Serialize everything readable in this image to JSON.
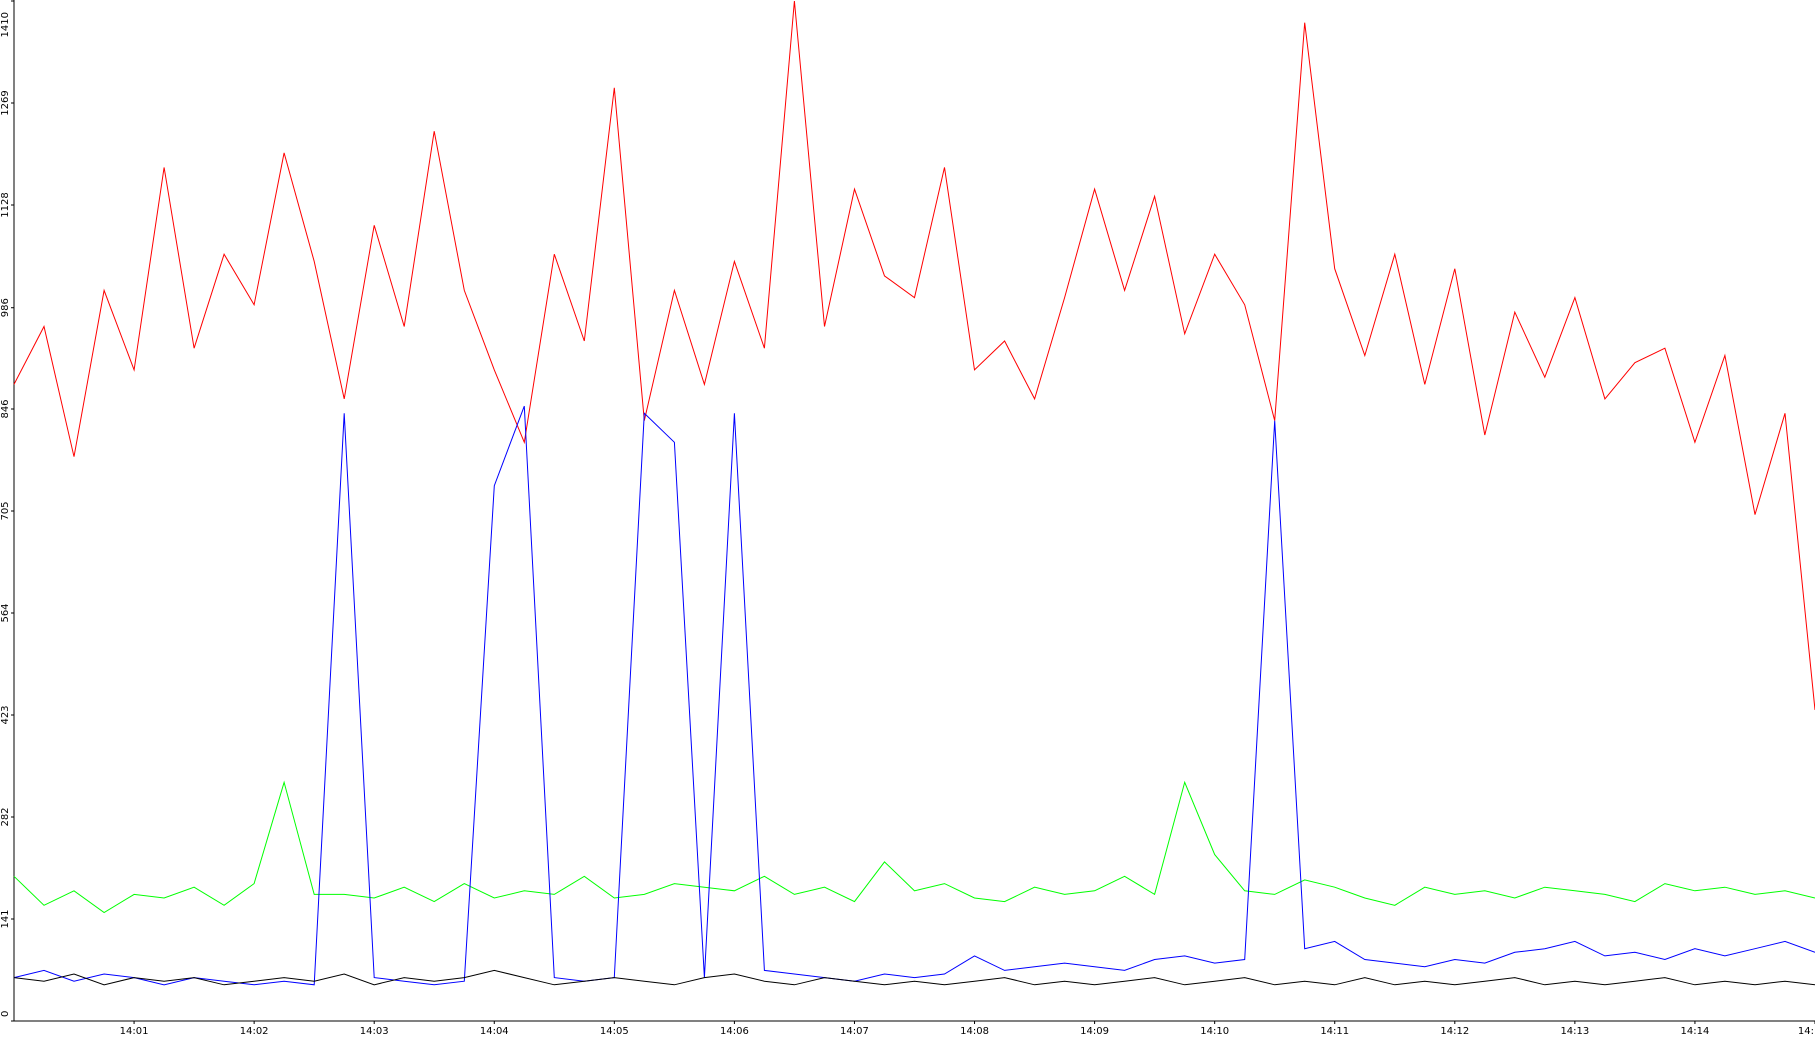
{
  "chart_data": {
    "type": "line",
    "x": [
      "14:00:00",
      "14:00:15",
      "14:00:30",
      "14:00:45",
      "14:01:00",
      "14:01:15",
      "14:01:30",
      "14:01:45",
      "14:02:00",
      "14:02:15",
      "14:02:30",
      "14:02:45",
      "14:03:00",
      "14:03:15",
      "14:03:30",
      "14:03:45",
      "14:04:00",
      "14:04:15",
      "14:04:30",
      "14:04:45",
      "14:05:00",
      "14:05:15",
      "14:05:30",
      "14:05:45",
      "14:06:00",
      "14:06:15",
      "14:06:30",
      "14:06:45",
      "14:07:00",
      "14:07:15",
      "14:07:30",
      "14:07:45",
      "14:08:00",
      "14:08:15",
      "14:08:30",
      "14:08:45",
      "14:09:00",
      "14:09:15",
      "14:09:30",
      "14:09:45",
      "14:10:00",
      "14:10:15",
      "14:10:30",
      "14:10:45",
      "14:11:00",
      "14:11:15",
      "14:11:30",
      "14:11:45",
      "14:12:00",
      "14:12:15",
      "14:12:30",
      "14:12:45",
      "14:13:00",
      "14:13:15",
      "14:13:30",
      "14:13:45",
      "14:14:00",
      "14:14:15",
      "14:14:30",
      "14:14:45",
      "14:15:00"
    ],
    "series": [
      {
        "color": "#ff0000",
        "values": [
          880,
          960,
          780,
          1010,
          900,
          1180,
          930,
          1060,
          990,
          1200,
          1050,
          860,
          1100,
          960,
          1230,
          1010,
          900,
          800,
          1060,
          940,
          1290,
          830,
          1010,
          880,
          1050,
          930,
          1410,
          960,
          1150,
          1030,
          1000,
          1180,
          900,
          940,
          860,
          1000,
          1150,
          1010,
          1140,
          950,
          1060,
          990,
          830,
          1380,
          1040,
          920,
          1060,
          880,
          1040,
          810,
          980,
          890,
          1000,
          860,
          910,
          930,
          800,
          920,
          700,
          840,
          430
        ]
      },
      {
        "color": "#00ff00",
        "values": [
          200,
          160,
          180,
          150,
          175,
          170,
          185,
          160,
          190,
          330,
          175,
          175,
          170,
          185,
          165,
          190,
          170,
          180,
          175,
          200,
          170,
          175,
          190,
          185,
          180,
          200,
          175,
          185,
          165,
          220,
          180,
          190,
          170,
          165,
          185,
          175,
          180,
          200,
          175,
          330,
          230,
          180,
          175,
          195,
          185,
          170,
          160,
          185,
          175,
          180,
          170,
          185,
          180,
          175,
          165,
          190,
          180,
          185,
          175,
          180,
          170
        ]
      },
      {
        "color": "#0000ff",
        "values": [
          60,
          70,
          55,
          65,
          60,
          50,
          60,
          55,
          50,
          55,
          50,
          840,
          60,
          55,
          50,
          55,
          740,
          850,
          60,
          55,
          60,
          840,
          800,
          60,
          840,
          70,
          65,
          60,
          55,
          65,
          60,
          65,
          90,
          70,
          75,
          80,
          75,
          70,
          85,
          90,
          80,
          85,
          830,
          100,
          110,
          85,
          80,
          75,
          85,
          80,
          95,
          100,
          110,
          90,
          95,
          85,
          100,
          90,
          100,
          110,
          95
        ]
      },
      {
        "color": "#000000",
        "values": [
          60,
          55,
          65,
          50,
          60,
          55,
          60,
          50,
          55,
          60,
          55,
          65,
          50,
          60,
          55,
          60,
          70,
          60,
          50,
          55,
          60,
          55,
          50,
          60,
          65,
          55,
          50,
          60,
          55,
          50,
          55,
          50,
          55,
          60,
          50,
          55,
          50,
          55,
          60,
          50,
          55,
          60,
          50,
          55,
          50,
          60,
          50,
          55,
          50,
          55,
          60,
          50,
          55,
          50,
          55,
          60,
          50,
          55,
          50,
          55,
          50
        ]
      }
    ],
    "xlim": [
      "14:00:00",
      "14:15:00"
    ],
    "xticks": [
      "14:01",
      "14:02",
      "14:03",
      "14:04",
      "14:05",
      "14:06",
      "14:07",
      "14:08",
      "14:09",
      "14:10",
      "14:11",
      "14:12",
      "14:13",
      "14:14",
      {
        "value": "14:15",
        "label": "14:"
      }
    ],
    "ylim": [
      0,
      1410
    ],
    "yticks": [
      0,
      141,
      282,
      423,
      564,
      705,
      846,
      986,
      1128,
      1269,
      1410
    ]
  }
}
